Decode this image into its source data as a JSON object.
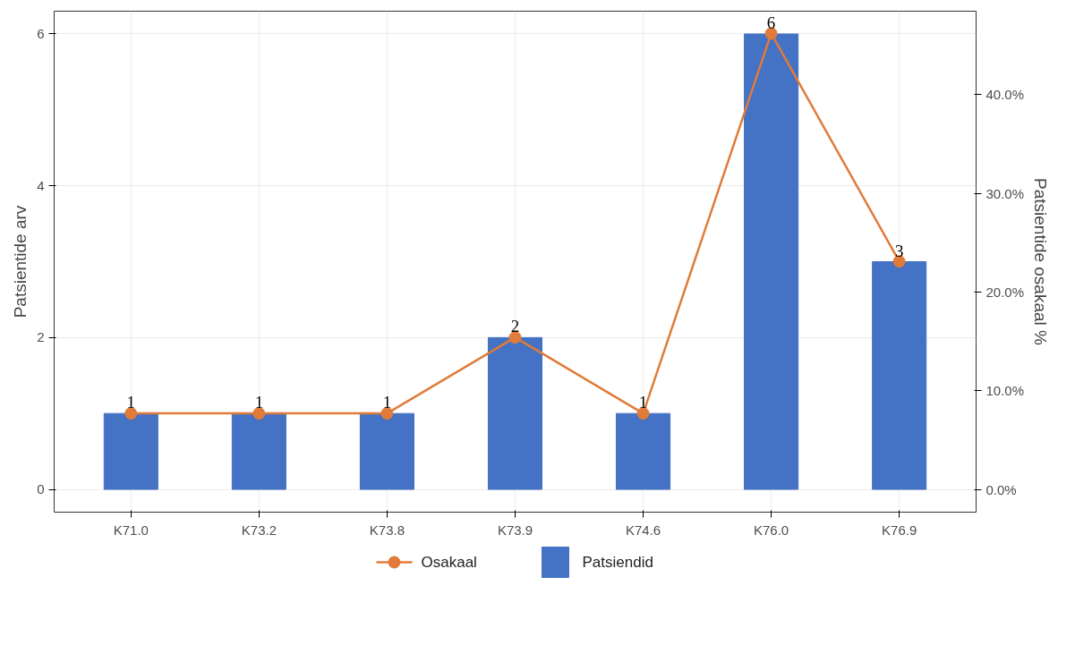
{
  "chart_data": {
    "type": "bar",
    "ylabel": "Patsientide arv",
    "y2label": "Patsientide osakaal %",
    "categories": [
      "K71.0",
      "K73.2",
      "K73.8",
      "K73.9",
      "K74.6",
      "K76.0",
      "K76.9"
    ],
    "series": [
      {
        "name": "Patsiendid",
        "color": "#4472c4",
        "values": [
          1,
          1,
          1,
          2,
          1,
          6,
          3
        ],
        "value_labels": [
          "1",
          "1",
          "1",
          "2",
          "1",
          "6",
          "3"
        ]
      },
      {
        "name": "Osakaal",
        "type": "line",
        "axis": "y2",
        "color": "#e07b39",
        "marker": "circle",
        "values": [
          7.7,
          7.7,
          7.7,
          15.4,
          7.7,
          46.2,
          23.1
        ]
      }
    ],
    "ylim": [
      -0.3,
      6.3
    ],
    "yticks": [
      0,
      2,
      4,
      6
    ],
    "y2lim": [
      -2.31,
      48.46
    ],
    "y2ticks": [
      {
        "value": 0,
        "label": "0.0%"
      },
      {
        "value": 10,
        "label": "10.0%"
      },
      {
        "value": 20,
        "label": "20.0%"
      },
      {
        "value": 30,
        "label": "30.0%"
      },
      {
        "value": 40,
        "label": "40.0%"
      }
    ],
    "grid": true,
    "legend": "bottom"
  }
}
